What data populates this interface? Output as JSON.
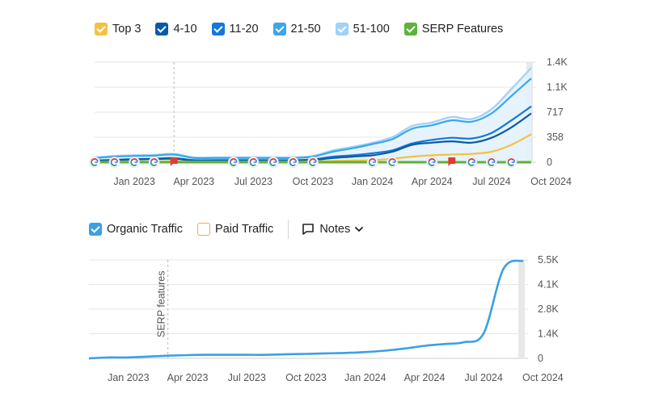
{
  "legend_top": {
    "items": [
      {
        "label": "Top 3",
        "color": "#f5c141",
        "checked": true
      },
      {
        "label": "4-10",
        "color": "#0b5aa8",
        "checked": true
      },
      {
        "label": "11-20",
        "color": "#1378d8",
        "checked": true
      },
      {
        "label": "21-50",
        "color": "#3aa6ee",
        "checked": true
      },
      {
        "label": "51-100",
        "color": "#9fd2f6",
        "checked": true
      },
      {
        "label": "SERP Features",
        "color": "#5cb338",
        "checked": true
      }
    ]
  },
  "legend_bottom": {
    "organic": {
      "label": "Organic Traffic",
      "color": "#3aa0e6",
      "checked": true
    },
    "paid": {
      "label": "Paid Traffic",
      "color": "#f2a65a",
      "checked": false
    },
    "notes_label": "Notes"
  },
  "chart_data": [
    {
      "type": "area",
      "xlabel": "",
      "ylabel": "",
      "x_ticks": [
        "Jan 2023",
        "Apr 2023",
        "Jul 2023",
        "Oct 2023",
        "Jan 2024",
        "Apr 2024",
        "Jul 2024",
        "Oct 2024"
      ],
      "y_ticks": [
        "0",
        "358",
        "717",
        "1.1K",
        "1.4K"
      ],
      "ylim": [
        0,
        1434
      ],
      "grid": true,
      "x": [
        "2022-11",
        "2022-12",
        "2023-01",
        "2023-02",
        "2023-03",
        "2023-04",
        "2023-05",
        "2023-06",
        "2023-07",
        "2023-08",
        "2023-09",
        "2023-10",
        "2023-11",
        "2023-12",
        "2024-01",
        "2024-02",
        "2024-03",
        "2024-04",
        "2024-05",
        "2024-06",
        "2024-07",
        "2024-08",
        "2024-09"
      ],
      "series": [
        {
          "name": "Top 3",
          "color": "#f5c141",
          "values": [
            5,
            8,
            10,
            12,
            14,
            8,
            8,
            8,
            8,
            8,
            8,
            12,
            20,
            25,
            30,
            50,
            80,
            100,
            110,
            120,
            150,
            250,
            400
          ]
        },
        {
          "name": "4-10",
          "color": "#0b5aa8",
          "values": [
            20,
            30,
            40,
            45,
            50,
            20,
            20,
            20,
            20,
            20,
            20,
            30,
            60,
            80,
            100,
            150,
            250,
            280,
            300,
            280,
            350,
            500,
            700
          ]
        },
        {
          "name": "11-20",
          "color": "#1378d8",
          "values": [
            25,
            35,
            45,
            50,
            60,
            30,
            30,
            30,
            30,
            30,
            30,
            40,
            80,
            100,
            130,
            170,
            270,
            320,
            350,
            340,
            420,
            600,
            800
          ]
        },
        {
          "name": "21-50",
          "color": "#3aa6ee",
          "values": [
            60,
            80,
            90,
            95,
            110,
            60,
            60,
            60,
            60,
            60,
            60,
            80,
            150,
            200,
            260,
            330,
            480,
            530,
            600,
            580,
            700,
            950,
            1200
          ]
        },
        {
          "name": "51-100",
          "color": "#9fd2f6",
          "values": [
            70,
            90,
            100,
            105,
            120,
            70,
            70,
            70,
            70,
            70,
            70,
            90,
            170,
            220,
            280,
            360,
            520,
            570,
            650,
            620,
            760,
            1050,
            1350
          ]
        }
      ],
      "serp_features": {
        "name": "SERP Features",
        "color": "#5cb338",
        "value": 0
      },
      "annotations": {
        "google_markers": [
          "2022-11",
          "2022-12",
          "2023-01",
          "2023-02",
          "2023-06",
          "2023-07",
          "2023-08",
          "2023-09",
          "2023-10",
          "2024-01",
          "2024-02",
          "2024-04",
          "2024-06",
          "2024-07",
          "2024-08"
        ],
        "flag_markers": [
          "2023-03",
          "2024-05"
        ],
        "vertical_marker": "2023-03"
      }
    },
    {
      "type": "line",
      "xlabel": "",
      "ylabel": "",
      "x_ticks": [
        "Jan 2023",
        "Apr 2023",
        "Jul 2023",
        "Oct 2023",
        "Jan 2024",
        "Apr 2024",
        "Jul 2024",
        "Oct 2024"
      ],
      "y_ticks": [
        "0",
        "1.4K",
        "2.8K",
        "4.1K",
        "5.5K"
      ],
      "ylim": [
        0,
        5500
      ],
      "grid": true,
      "x": [
        "2022-11",
        "2022-12",
        "2023-01",
        "2023-02",
        "2023-03",
        "2023-04",
        "2023-05",
        "2023-06",
        "2023-07",
        "2023-08",
        "2023-09",
        "2023-10",
        "2023-11",
        "2023-12",
        "2024-01",
        "2024-02",
        "2024-03",
        "2024-04",
        "2024-05",
        "2024-06",
        "2024-07",
        "2024-08",
        "2024-09"
      ],
      "series": [
        {
          "name": "Organic Traffic",
          "color": "#3aa0e6",
          "values": [
            0,
            50,
            50,
            100,
            150,
            180,
            200,
            200,
            200,
            200,
            230,
            250,
            280,
            300,
            350,
            430,
            550,
            700,
            800,
            900,
            1400,
            5000,
            5450
          ]
        }
      ],
      "annotations": {
        "vertical_marker": "2023-03",
        "vertical_label": "SERP features"
      }
    }
  ]
}
